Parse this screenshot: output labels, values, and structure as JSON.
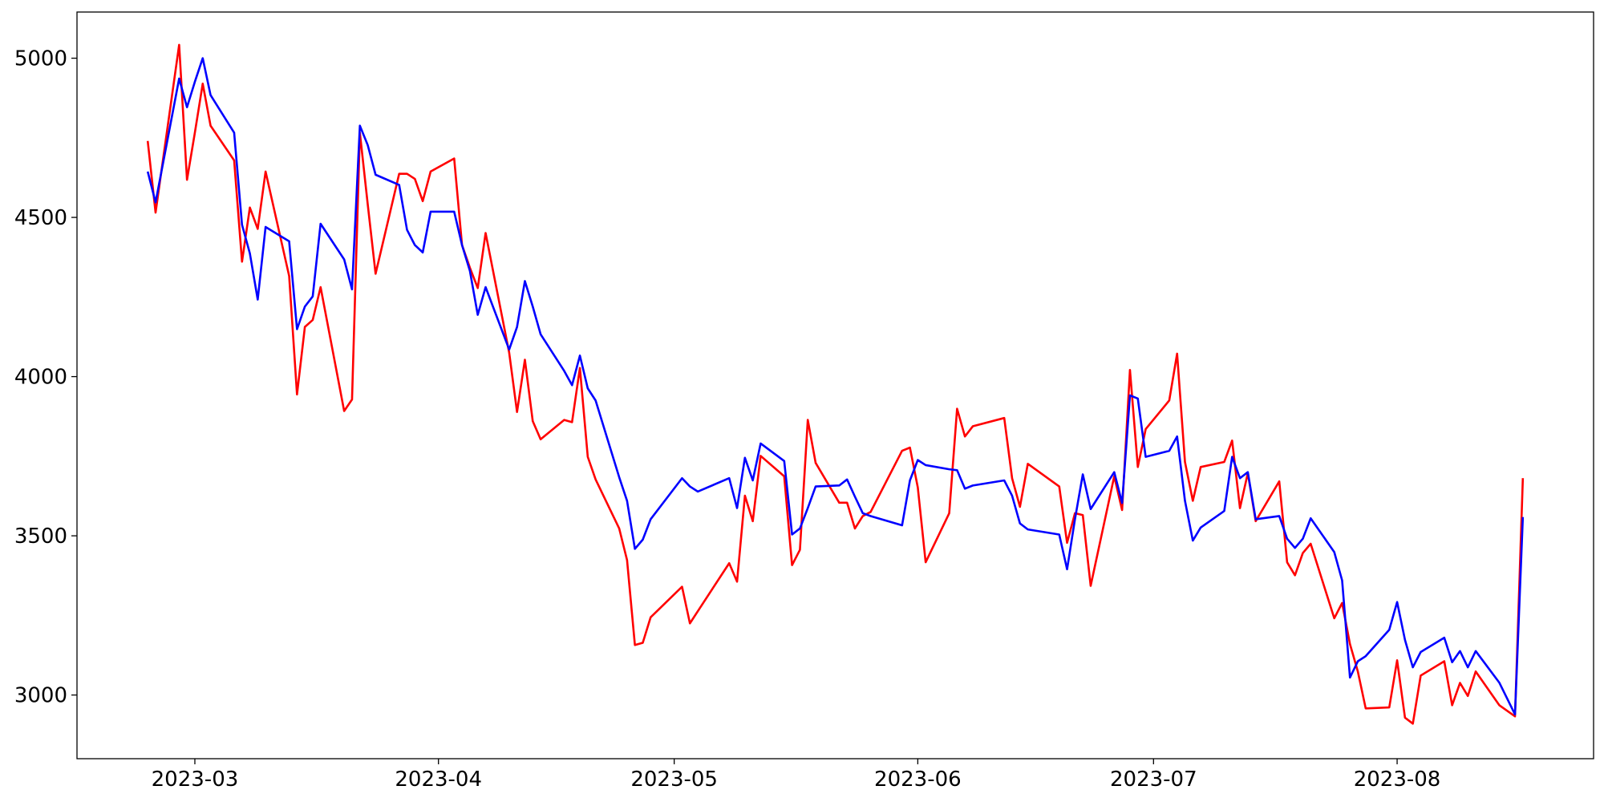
{
  "chart_data": {
    "type": "line",
    "x": [
      "2023-02-23",
      "2023-02-24",
      "2023-02-27",
      "2023-02-28",
      "2023-03-01",
      "2023-03-02",
      "2023-03-03",
      "2023-03-06",
      "2023-03-07",
      "2023-03-08",
      "2023-03-09",
      "2023-03-10",
      "2023-03-13",
      "2023-03-14",
      "2023-03-15",
      "2023-03-16",
      "2023-03-17",
      "2023-03-20",
      "2023-03-21",
      "2023-03-22",
      "2023-03-23",
      "2023-03-24",
      "2023-03-27",
      "2023-03-28",
      "2023-03-29",
      "2023-03-30",
      "2023-03-31",
      "2023-04-03",
      "2023-04-04",
      "2023-04-05",
      "2023-04-06",
      "2023-04-07",
      "2023-04-10",
      "2023-04-11",
      "2023-04-12",
      "2023-04-13",
      "2023-04-14",
      "2023-04-17",
      "2023-04-18",
      "2023-04-19",
      "2023-04-20",
      "2023-04-21",
      "2023-04-24",
      "2023-04-25",
      "2023-04-26",
      "2023-04-27",
      "2023-04-28",
      "2023-05-02",
      "2023-05-03",
      "2023-05-04",
      "2023-05-08",
      "2023-05-09",
      "2023-05-10",
      "2023-05-11",
      "2023-05-12",
      "2023-05-15",
      "2023-05-16",
      "2023-05-17",
      "2023-05-18",
      "2023-05-19",
      "2023-05-22",
      "2023-05-23",
      "2023-05-24",
      "2023-05-25",
      "2023-05-26",
      "2023-05-30",
      "2023-05-31",
      "2023-06-01",
      "2023-06-02",
      "2023-06-05",
      "2023-06-06",
      "2023-06-07",
      "2023-06-08",
      "2023-06-12",
      "2023-06-13",
      "2023-06-14",
      "2023-06-15",
      "2023-06-19",
      "2023-06-20",
      "2023-06-21",
      "2023-06-22",
      "2023-06-23",
      "2023-06-26",
      "2023-06-27",
      "2023-06-28",
      "2023-06-29",
      "2023-06-30",
      "2023-07-03",
      "2023-07-04",
      "2023-07-05",
      "2023-07-06",
      "2023-07-07",
      "2023-07-10",
      "2023-07-11",
      "2023-07-12",
      "2023-07-13",
      "2023-07-14",
      "2023-07-17",
      "2023-07-18",
      "2023-07-19",
      "2023-07-20",
      "2023-07-21",
      "2023-07-24",
      "2023-07-25",
      "2023-07-26",
      "2023-07-27",
      "2023-07-28",
      "2023-07-31",
      "2023-08-01",
      "2023-08-02",
      "2023-08-03",
      "2023-08-04",
      "2023-08-07",
      "2023-08-08",
      "2023-08-09",
      "2023-08-10",
      "2023-08-11",
      "2023-08-14",
      "2023-08-16",
      "2023-08-17"
    ],
    "series": [
      {
        "color": "#ff0000",
        "values": [
          4740,
          4515,
          5042,
          4618,
          4766,
          4920,
          4788,
          4679,
          4361,
          4531,
          4464,
          4644,
          4316,
          3944,
          4156,
          4178,
          4281,
          3892,
          3928,
          4766,
          4541,
          4323,
          4637,
          4637,
          4621,
          4551,
          4644,
          4685,
          4413,
          4342,
          4278,
          4451,
          4075,
          3889,
          4053,
          3860,
          3803,
          3864,
          3857,
          4027,
          3748,
          3677,
          3523,
          3424,
          3157,
          3164,
          3244,
          3340,
          3225,
          3263,
          3414,
          3356,
          3626,
          3546,
          3751,
          3687,
          3408,
          3456,
          3864,
          3729,
          3604,
          3604,
          3523,
          3562,
          3575,
          3767,
          3777,
          3652,
          3417,
          3571,
          3899,
          3812,
          3844,
          3870,
          3681,
          3591,
          3726,
          3655,
          3478,
          3571,
          3565,
          3343,
          3687,
          3581,
          4021,
          3716,
          3835,
          3925,
          4072,
          3732,
          3610,
          3716,
          3732,
          3799,
          3587,
          3697,
          3546,
          3671,
          3417,
          3376,
          3446,
          3475,
          3241,
          3289,
          3160,
          3074,
          2958,
          2961,
          3109,
          2929,
          2910,
          3061,
          3106,
          2968,
          3038,
          2997,
          3074,
          2968,
          2933,
          3681
        ]
      },
      {
        "color": "#0000ff",
        "values": [
          4644,
          4547,
          4936,
          4846,
          4926,
          5000,
          4884,
          4766,
          4477,
          4387,
          4242,
          4470,
          4425,
          4149,
          4220,
          4252,
          4480,
          4368,
          4274,
          4788,
          4727,
          4634,
          4602,
          4461,
          4413,
          4390,
          4518,
          4518,
          4413,
          4332,
          4194,
          4281,
          4085,
          4156,
          4300,
          4220,
          4133,
          4018,
          3973,
          4066,
          3963,
          3925,
          3684,
          3610,
          3459,
          3488,
          3552,
          3681,
          3655,
          3639,
          3681,
          3587,
          3745,
          3674,
          3790,
          3735,
          3504,
          3523,
          3587,
          3655,
          3658,
          3677,
          3623,
          3571,
          3562,
          3533,
          3674,
          3738,
          3722,
          3709,
          3706,
          3648,
          3658,
          3674,
          3626,
          3539,
          3520,
          3504,
          3395,
          3552,
          3693,
          3584,
          3700,
          3603,
          3941,
          3931,
          3748,
          3767,
          3812,
          3610,
          3485,
          3526,
          3578,
          3748,
          3681,
          3700,
          3552,
          3562,
          3491,
          3462,
          3491,
          3555,
          3449,
          3360,
          3055,
          3106,
          3122,
          3205,
          3292,
          3173,
          3087,
          3135,
          3180,
          3103,
          3138,
          3087,
          3138,
          3039,
          2939,
          3559
        ]
      }
    ],
    "xlim": [
      "2023-02-14",
      "2023-08-26"
    ],
    "xticks": [
      "2023-03",
      "2023-04",
      "2023-05",
      "2023-06",
      "2023-07",
      "2023-08"
    ],
    "ylim": [
      2800,
      5145
    ],
    "yticks": [
      3000,
      3500,
      4000,
      4500,
      5000
    ],
    "grid": false
  }
}
